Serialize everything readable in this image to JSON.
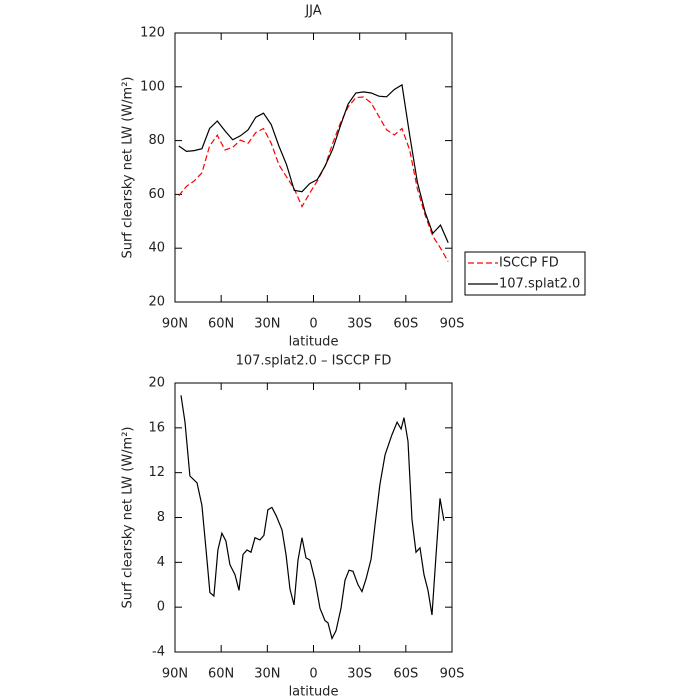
{
  "chart_data": [
    {
      "type": "line",
      "title": "JJA",
      "xlabel": "latitude",
      "ylabel": "Surf clearsky net LW (W/m²)",
      "x": [
        87.5,
        82.5,
        77.5,
        72.5,
        67.5,
        62.5,
        57.5,
        52.5,
        47.5,
        42.5,
        37.5,
        32.5,
        27.5,
        22.5,
        17.5,
        12.5,
        7.5,
        2.5,
        -2.5,
        -7.5,
        -12.5,
        -17.5,
        -22.5,
        -27.5,
        -32.5,
        -37.5,
        -42.5,
        -47.5,
        -52.5,
        -57.5,
        -62.5,
        -67.5,
        -72.5,
        -77.5,
        -82.5,
        -87.5
      ],
      "series": [
        {
          "name": "ISCCP FD",
          "color": "#ff0000",
          "linestyle": "dashed",
          "values": [
            59.5,
            63,
            65,
            68,
            78,
            82,
            76.5,
            77.5,
            80.2,
            79,
            83,
            84.5,
            79,
            71,
            66.5,
            62,
            55.5,
            60.5,
            65,
            70.5,
            79,
            86.5,
            92.5,
            96,
            96.2,
            94,
            89,
            84,
            82.1,
            84.5,
            76.5,
            62,
            52.3,
            44.5,
            40,
            35
          ]
        },
        {
          "name": "107.splat2.0",
          "color": "#000000",
          "linestyle": "solid",
          "values": [
            78,
            76,
            76.3,
            77,
            84.5,
            87.3,
            83.6,
            80.3,
            81.8,
            84,
            88.7,
            90.2,
            86,
            78,
            71,
            61.5,
            61,
            64,
            65.5,
            70.5,
            76.8,
            85.5,
            93.6,
            97.7,
            98.1,
            97.7,
            96.5,
            96.3,
            99,
            100.7,
            82,
            64.5,
            53.4,
            45.5,
            48.6,
            42
          ]
        }
      ],
      "xlim": [
        90,
        -90
      ],
      "xticks": [
        {
          "value": 90,
          "label": "90N"
        },
        {
          "value": 60,
          "label": "60N"
        },
        {
          "value": 30,
          "label": "30N"
        },
        0,
        {
          "value": -30,
          "label": "30S"
        },
        {
          "value": -60,
          "label": "60S"
        },
        {
          "value": -90,
          "label": "90S"
        }
      ],
      "ylim": [
        20,
        120
      ],
      "yticks": [
        20,
        40,
        60,
        80,
        100,
        120
      ],
      "legend": "outside-right"
    },
    {
      "type": "line",
      "title": "107.splat2.0 – ISCCP FD",
      "xlabel": "latitude",
      "ylabel": "Surf clearsky net LW (W/m²)",
      "x": [
        86.1,
        83.5,
        80.3,
        75.7,
        72.5,
        69.2,
        67.3,
        64.7,
        62.1,
        59.5,
        56.9,
        54.3,
        51.0,
        48.4,
        45.8,
        43.2,
        40.6,
        38.0,
        34.8,
        32.2,
        29.6,
        27.0,
        24.4,
        20.5,
        17.9,
        15.3,
        12.7,
        10.1,
        7.5,
        4.9,
        2.3,
        -1.0,
        -4.2,
        -7.5,
        -9.4,
        -12.0,
        -14.6,
        -17.9,
        -20.5,
        -23.1,
        -25.7,
        -28.9,
        -31.5,
        -34.1,
        -37.4,
        -40.0,
        -43.2,
        -46.5,
        -51.0,
        -54.3,
        -56.9,
        -58.8,
        -61.4,
        -64.0,
        -66.6,
        -69.2,
        -71.8,
        -74.4,
        -77.0,
        -79.6,
        -82.2,
        -84.8
      ],
      "values": [
        18.9,
        16.5,
        11.7,
        11.1,
        9.1,
        4.2,
        1.3,
        1.0,
        5.1,
        6.6,
        5.9,
        3.8,
        2.9,
        1.5,
        4.7,
        5.1,
        4.9,
        6.2,
        6.0,
        6.4,
        8.7,
        8.9,
        8.2,
        6.9,
        4.7,
        1.6,
        0.2,
        4.2,
        6.2,
        4.4,
        4.2,
        2.4,
        -0.1,
        -1.2,
        -1.4,
        -2.8,
        -2.1,
        -0.1,
        2.4,
        3.3,
        3.2,
        2.0,
        1.4,
        2.5,
        4.3,
        7.4,
        11.0,
        13.6,
        15.4,
        16.5,
        15.9,
        16.9,
        14.8,
        7.8,
        4.9,
        5.3,
        2.9,
        1.5,
        -0.7,
        4.6,
        9.7,
        7.7
      ],
      "color": "#000000",
      "linestyle": "solid",
      "xlim": [
        90,
        -90
      ],
      "xticks": [
        {
          "value": 90,
          "label": "90N"
        },
        {
          "value": 60,
          "label": "60N"
        },
        {
          "value": 30,
          "label": "30N"
        },
        0,
        {
          "value": -30,
          "label": "30S"
        },
        {
          "value": -60,
          "label": "60S"
        },
        {
          "value": -90,
          "label": "90S"
        }
      ],
      "ylim": [
        -4,
        20
      ],
      "yticks": [
        -4,
        0,
        4,
        8,
        12,
        16,
        20
      ]
    }
  ]
}
